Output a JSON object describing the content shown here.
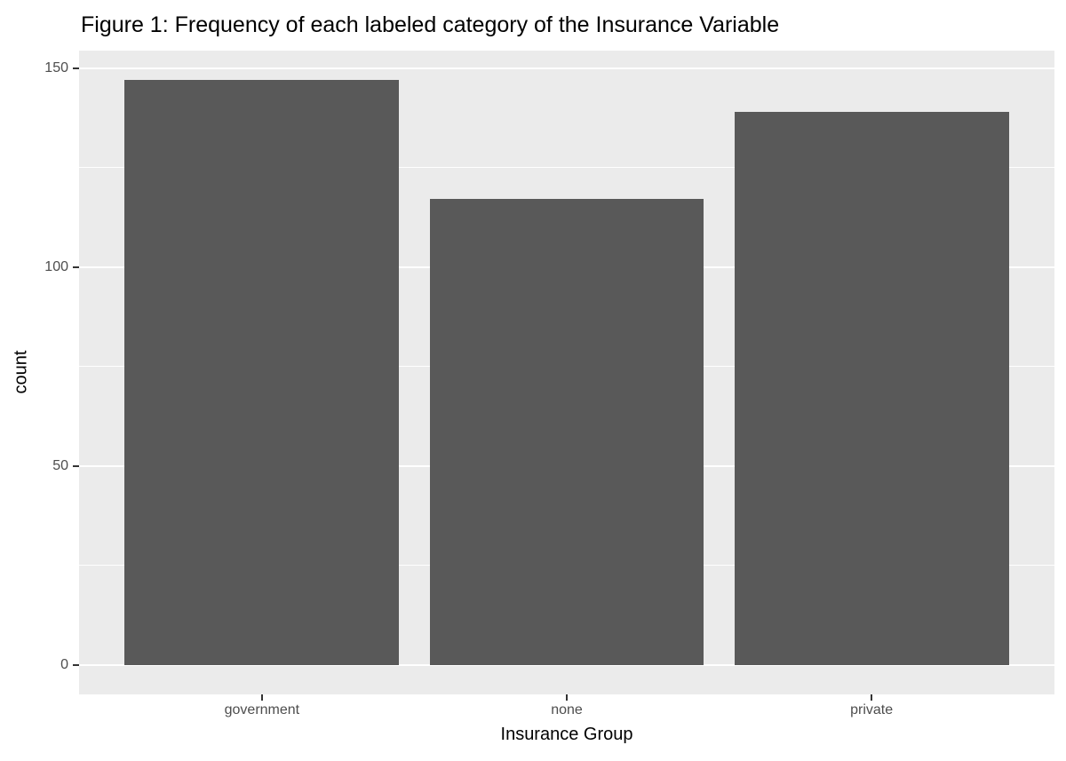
{
  "chart_data": {
    "type": "bar",
    "title": "Figure 1: Frequency of each labeled category of the Insurance Variable",
    "categories": [
      "government",
      "none",
      "private"
    ],
    "values": [
      147,
      117,
      139
    ],
    "xlabel": "Insurance Group",
    "ylabel": "count",
    "ylim": [
      0,
      150
    ],
    "yticks": [
      0,
      50,
      100,
      150
    ],
    "yticks_minor": [
      25,
      75,
      125
    ],
    "grid": "on",
    "legend_position": "none",
    "bar_width_fraction": 0.9,
    "scale_expansion_mult": 0.05,
    "colors": {
      "bar_fill": "#595959",
      "panel_background": "#EBEBEB",
      "gridline": "#FFFFFF",
      "tick_label": "#4D4D4D",
      "axis_title": "#000000",
      "title": "#000000",
      "tick_mark": "#333333",
      "page_background": "#FFFFFF"
    }
  }
}
